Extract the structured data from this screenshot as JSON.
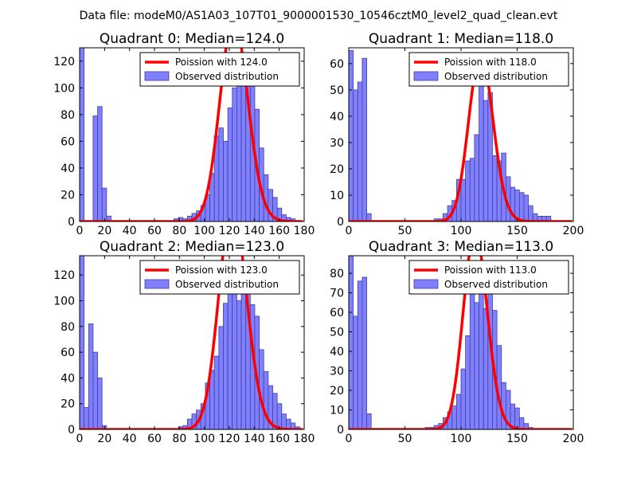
{
  "suptitle": "Data file: modeM0/AS1A03_107T01_9000001530_10546cztM0_level2_quad_clean.evt",
  "colors": {
    "bar_fill": "#8080ff",
    "bar_edge": "#3f3f9f",
    "curve": "#ff0000"
  },
  "chart_data": [
    {
      "type": "bar",
      "title": "Quadrant 0: Median=124.0",
      "median": 124.0,
      "xlim": [
        0,
        180
      ],
      "ylim": [
        0,
        130
      ],
      "xticks": [
        0,
        20,
        40,
        60,
        80,
        100,
        120,
        140,
        160,
        180
      ],
      "yticks": [
        0,
        20,
        40,
        60,
        80,
        100,
        120
      ],
      "legend": {
        "line": "Poission with 124.0",
        "bars": "Observed distribution",
        "position": "top-right"
      },
      "bar_width": 3.6,
      "bins": [
        [
          0,
          130
        ],
        [
          3.6,
          0
        ],
        [
          7.2,
          0
        ],
        [
          10.8,
          79
        ],
        [
          14.4,
          86
        ],
        [
          18,
          25
        ],
        [
          21.6,
          4
        ],
        [
          75.6,
          2
        ],
        [
          79.2,
          3
        ],
        [
          82.8,
          2
        ],
        [
          86.4,
          4
        ],
        [
          90,
          6
        ],
        [
          93.6,
          8
        ],
        [
          97.2,
          12
        ],
        [
          100.8,
          20
        ],
        [
          104.4,
          36
        ],
        [
          108,
          64
        ],
        [
          111.6,
          70
        ],
        [
          115.2,
          60
        ],
        [
          118.8,
          85
        ],
        [
          122.4,
          100
        ],
        [
          126,
          125
        ],
        [
          129.6,
          112
        ],
        [
          133.2,
          125
        ],
        [
          136.8,
          103
        ],
        [
          140.4,
          84
        ],
        [
          144,
          55
        ],
        [
          147.6,
          35
        ],
        [
          151.2,
          24
        ],
        [
          154.8,
          18
        ],
        [
          158.4,
          10
        ],
        [
          162,
          5
        ],
        [
          165.6,
          3
        ],
        [
          169.2,
          2
        ]
      ]
    },
    {
      "type": "bar",
      "title": "Quadrant 1: Median=118.0",
      "median": 118.0,
      "xlim": [
        0,
        200
      ],
      "ylim": [
        0,
        66
      ],
      "xticks": [
        0,
        50,
        100,
        150,
        200
      ],
      "yticks": [
        0,
        10,
        20,
        30,
        40,
        50,
        60
      ],
      "legend": {
        "line": "Poission with 118.0",
        "bars": "Observed distribution",
        "position": "top-right"
      },
      "bar_width": 4,
      "bins": [
        [
          0,
          65
        ],
        [
          4,
          50
        ],
        [
          8,
          53
        ],
        [
          12,
          62
        ],
        [
          16,
          3
        ],
        [
          76,
          1
        ],
        [
          80,
          1
        ],
        [
          84,
          3
        ],
        [
          88,
          6
        ],
        [
          92,
          8
        ],
        [
          96,
          16
        ],
        [
          100,
          16
        ],
        [
          104,
          23
        ],
        [
          108,
          24
        ],
        [
          112,
          33
        ],
        [
          116,
          54
        ],
        [
          120,
          46
        ],
        [
          124,
          49
        ],
        [
          128,
          25
        ],
        [
          132,
          23
        ],
        [
          136,
          26
        ],
        [
          140,
          17
        ],
        [
          144,
          13
        ],
        [
          148,
          12
        ],
        [
          152,
          11
        ],
        [
          156,
          10
        ],
        [
          160,
          6
        ],
        [
          164,
          3
        ],
        [
          168,
          2
        ],
        [
          172,
          2
        ],
        [
          176,
          2
        ]
      ]
    },
    {
      "type": "bar",
      "title": "Quadrant 2: Median=123.0",
      "median": 123.0,
      "xlim": [
        0,
        180
      ],
      "ylim": [
        0,
        135
      ],
      "xticks": [
        0,
        20,
        40,
        60,
        80,
        100,
        120,
        140,
        160,
        180
      ],
      "yticks": [
        0,
        20,
        40,
        60,
        80,
        100,
        120
      ],
      "legend": {
        "line": "Poission with 123.0",
        "bars": "Observed distribution",
        "position": "top-right"
      },
      "bar_width": 3.6,
      "bins": [
        [
          0,
          135
        ],
        [
          3.6,
          17
        ],
        [
          7.2,
          82
        ],
        [
          10.8,
          60
        ],
        [
          14.4,
          40
        ],
        [
          18,
          3
        ],
        [
          79.2,
          2
        ],
        [
          82.8,
          3
        ],
        [
          86.4,
          8
        ],
        [
          90,
          12
        ],
        [
          93.6,
          15
        ],
        [
          97.2,
          20
        ],
        [
          100.8,
          36
        ],
        [
          104.4,
          46
        ],
        [
          108,
          57
        ],
        [
          111.6,
          80
        ],
        [
          115.2,
          98
        ],
        [
          118.8,
          115
        ],
        [
          122.4,
          110
        ],
        [
          126,
          100
        ],
        [
          129.6,
          118
        ],
        [
          133.2,
          116
        ],
        [
          136.8,
          97
        ],
        [
          140.4,
          88
        ],
        [
          144,
          62
        ],
        [
          147.6,
          45
        ],
        [
          151.2,
          34
        ],
        [
          154.8,
          28
        ],
        [
          158.4,
          20
        ],
        [
          162,
          12
        ],
        [
          165.6,
          8
        ],
        [
          169.2,
          5
        ],
        [
          172.8,
          2
        ]
      ]
    },
    {
      "type": "bar",
      "title": "Quadrant 3: Median=113.0",
      "median": 113.0,
      "xlim": [
        0,
        200
      ],
      "ylim": [
        0,
        89
      ],
      "xticks": [
        0,
        50,
        100,
        150,
        200
      ],
      "yticks": [
        0,
        10,
        20,
        30,
        40,
        50,
        60,
        70,
        80
      ],
      "legend": {
        "line": "Poission with 113.0",
        "bars": "Observed distribution",
        "position": "top-right"
      },
      "bar_width": 4,
      "bins": [
        [
          0,
          89
        ],
        [
          4,
          58
        ],
        [
          8,
          76
        ],
        [
          12,
          78
        ],
        [
          16,
          8
        ],
        [
          68,
          1
        ],
        [
          72,
          1
        ],
        [
          76,
          2
        ],
        [
          80,
          3
        ],
        [
          84,
          6
        ],
        [
          88,
          9
        ],
        [
          92,
          12
        ],
        [
          96,
          18
        ],
        [
          100,
          31
        ],
        [
          104,
          48
        ],
        [
          108,
          74
        ],
        [
          112,
          65
        ],
        [
          116,
          74
        ],
        [
          120,
          62
        ],
        [
          124,
          84
        ],
        [
          128,
          61
        ],
        [
          132,
          43
        ],
        [
          136,
          24
        ],
        [
          140,
          20
        ],
        [
          144,
          13
        ],
        [
          148,
          11
        ],
        [
          152,
          6
        ],
        [
          156,
          3
        ],
        [
          160,
          1
        ]
      ]
    }
  ]
}
